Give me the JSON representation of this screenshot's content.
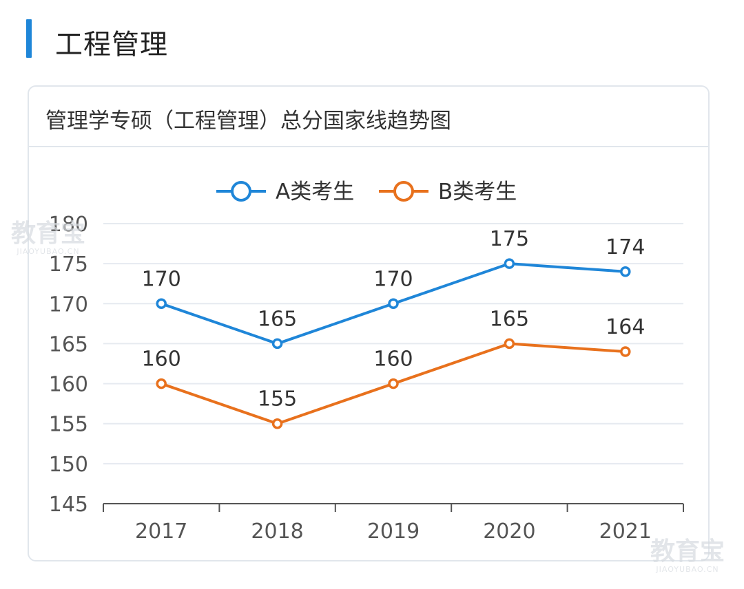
{
  "section": {
    "title": "工程管理"
  },
  "card": {
    "title": "管理学专硕（工程管理）总分国家线趋势图"
  },
  "colors": {
    "accent": "#1f86d8",
    "series_a": "#1f86d8",
    "series_b": "#e8711d",
    "grid": "#e6eaf0",
    "axis": "#555555"
  },
  "watermark": {
    "main": "教育宝",
    "sub": "JIAOYUBAO.CN"
  },
  "chart_data": {
    "type": "line",
    "categories": [
      "2017",
      "2018",
      "2019",
      "2020",
      "2021"
    ],
    "series": [
      {
        "name": "A类考生",
        "color": "#1f86d8",
        "values": [
          170,
          165,
          170,
          175,
          174
        ]
      },
      {
        "name": "B类考生",
        "color": "#e8711d",
        "values": [
          160,
          155,
          160,
          165,
          164
        ]
      }
    ],
    "ylim": [
      145,
      180
    ],
    "yticks": [
      145,
      150,
      155,
      160,
      165,
      170,
      175,
      180
    ],
    "data_labels": true,
    "grid": true,
    "legend": "top-center"
  }
}
